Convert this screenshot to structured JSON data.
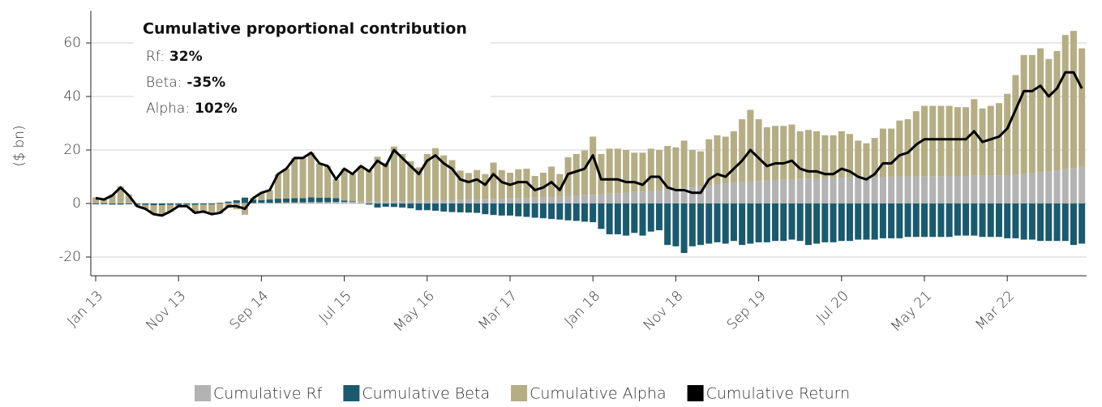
{
  "chart_data": {
    "type": "stacked-bar-line",
    "y_label": "($ bn)",
    "annotation": {
      "title": "Cumulative proportional contribution",
      "items": [
        {
          "label": "Rf:",
          "value": "32%"
        },
        {
          "label": "Beta:",
          "value": "-35%"
        },
        {
          "label": "Alpha:",
          "value": "102%"
        }
      ]
    },
    "categories": [
      "Jan 13",
      null,
      null,
      null,
      null,
      null,
      null,
      null,
      null,
      null,
      "Nov 13",
      null,
      null,
      null,
      null,
      null,
      null,
      null,
      null,
      null,
      "Sep 14",
      null,
      null,
      null,
      null,
      null,
      null,
      null,
      null,
      null,
      "Jul 15",
      null,
      null,
      null,
      null,
      null,
      null,
      null,
      null,
      null,
      "May 16",
      null,
      null,
      null,
      null,
      null,
      null,
      null,
      null,
      null,
      "Mar 17",
      null,
      null,
      null,
      null,
      null,
      null,
      null,
      null,
      null,
      "Jan 18",
      null,
      null,
      null,
      null,
      null,
      null,
      null,
      null,
      null,
      "Nov 18",
      null,
      null,
      null,
      null,
      null,
      null,
      null,
      null,
      null,
      "Sep 19",
      null,
      null,
      null,
      null,
      null,
      null,
      null,
      null,
      null,
      "Jul 20",
      null,
      null,
      null,
      null,
      null,
      null,
      null,
      null,
      null,
      "May 21",
      null,
      null,
      null,
      null,
      null,
      null,
      null,
      null,
      null,
      "Mar 22",
      null,
      null,
      null,
      null,
      null,
      null,
      null,
      null,
      null
    ],
    "series": [
      {
        "name": "Cumulative Rf",
        "color": "#b3b3b3",
        "kind": "bar",
        "values": [
          0.1,
          0.1,
          0.1,
          0.1,
          0.1,
          0.1,
          0.1,
          0.1,
          0.1,
          0.1,
          0.1,
          0.1,
          0.1,
          0.1,
          0.1,
          0.1,
          0.2,
          0.2,
          0.2,
          0.2,
          0.3,
          0.3,
          0.3,
          0.4,
          0.4,
          0.4,
          0.5,
          0.5,
          0.5,
          0.6,
          0.6,
          0.6,
          0.7,
          0.7,
          0.8,
          0.8,
          0.9,
          0.9,
          1.0,
          1.0,
          1.1,
          1.1,
          1.2,
          1.2,
          1.3,
          1.4,
          1.5,
          1.6,
          1.7,
          1.8,
          1.9,
          2.0,
          2.1,
          2.2,
          2.3,
          2.4,
          2.5,
          2.7,
          2.9,
          3.1,
          3.3,
          3.5,
          3.7,
          3.9,
          4.1,
          4.3,
          4.5,
          4.7,
          5.0,
          5.3,
          5.6,
          5.9,
          6.2,
          6.5,
          6.8,
          7.1,
          7.4,
          7.7,
          8.0,
          8.2,
          8.4,
          8.6,
          8.8,
          9.0,
          9.1,
          9.2,
          9.3,
          9.4,
          9.5,
          9.6,
          9.7,
          9.8,
          9.9,
          10.0,
          10.0,
          10.0,
          10.1,
          10.1,
          10.1,
          10.1,
          10.2,
          10.2,
          10.2,
          10.3,
          10.3,
          10.3,
          10.4,
          10.4,
          10.4,
          10.5,
          10.6,
          10.8,
          11.0,
          11.3,
          11.6,
          12.0,
          12.4,
          12.8,
          13.3,
          13.8
        ]
      },
      {
        "name": "Cumulative Beta",
        "color": "#1a5a6e",
        "kind": "bar",
        "values": [
          -0.3,
          -0.3,
          -0.4,
          -0.4,
          -0.3,
          -0.4,
          -0.5,
          -0.6,
          -0.6,
          -0.5,
          -0.5,
          -0.4,
          -0.5,
          -0.4,
          -0.3,
          0.2,
          0.5,
          1.0,
          2.0,
          1.2,
          1.0,
          1.2,
          1.5,
          1.5,
          1.6,
          1.6,
          1.8,
          1.7,
          1.7,
          1.4,
          0.5,
          0.2,
          0.0,
          -0.4,
          -1.5,
          -1.2,
          -1.3,
          -1.5,
          -1.8,
          -2.5,
          -2.5,
          -2.7,
          -3.0,
          -3.2,
          -3.3,
          -3.4,
          -3.5,
          -4.0,
          -4.3,
          -4.5,
          -4.5,
          -4.8,
          -5.0,
          -5.3,
          -5.5,
          -5.8,
          -6.0,
          -6.3,
          -6.5,
          -6.8,
          -7.0,
          -9.5,
          -11.5,
          -11.5,
          -12.0,
          -11.0,
          -12.0,
          -10.5,
          -10.0,
          -15.5,
          -16.0,
          -18.5,
          -16.0,
          -15.5,
          -15.0,
          -14.5,
          -15.0,
          -14.0,
          -15.5,
          -15.0,
          -14.5,
          -14.5,
          -14.0,
          -14.0,
          -13.5,
          -14.0,
          -15.5,
          -15.0,
          -14.5,
          -14.5,
          -14.0,
          -14.0,
          -13.5,
          -13.5,
          -13.5,
          -13.0,
          -13.0,
          -13.0,
          -12.5,
          -12.5,
          -12.5,
          -12.5,
          -12.5,
          -12.5,
          -12.0,
          -12.0,
          -12.0,
          -12.5,
          -12.5,
          -12.5,
          -13.0,
          -13.0,
          -13.5,
          -13.5,
          -14.0,
          -14.0,
          -14.0,
          -14.0,
          -15.5,
          -15.0
        ]
      },
      {
        "name": "Cumulative Alpha",
        "color": "#b5ad84",
        "kind": "bar",
        "values": [
          2.2,
          1.7,
          3.3,
          6.3,
          3.2,
          -0.7,
          -1.6,
          -3.5,
          -4.0,
          -2.6,
          -0.6,
          -0.7,
          -3.1,
          -2.7,
          -3.8,
          -3.8,
          -1.7,
          -2.2,
          -4.2,
          0.6,
          2.7,
          3.5,
          9.2,
          11.1,
          15.0,
          15.0,
          16.7,
          12.8,
          11.8,
          7.0,
          11.9,
          10.2,
          13.3,
          11.7,
          16.7,
          14.4,
          20.4,
          17.6,
          14.8,
          12.5,
          17.4,
          19.6,
          16.8,
          15.0,
          11.0,
          10.0,
          11.0,
          9.4,
          13.6,
          10.7,
          9.6,
          10.8,
          10.9,
          8.1,
          9.2,
          11.4,
          8.5,
          14.6,
          15.6,
          16.7,
          21.7,
          15.0,
          16.8,
          16.6,
          15.9,
          14.7,
          14.5,
          15.8,
          15.0,
          16.2,
          15.4,
          17.6,
          13.8,
          13.0,
          17.2,
          18.4,
          17.6,
          19.3,
          23.5,
          26.8,
          23.1,
          19.9,
          20.2,
          20.0,
          20.4,
          17.8,
          18.2,
          17.6,
          16.0,
          15.9,
          17.3,
          16.2,
          13.6,
          12.5,
          14.5,
          18.0,
          17.9,
          20.9,
          21.4,
          24.4,
          26.3,
          26.3,
          26.3,
          26.2,
          25.7,
          25.7,
          28.6,
          25.1,
          26.1,
          27.0,
          30.4,
          37.2,
          44.5,
          44.2,
          46.4,
          42.0,
          44.6,
          50.2,
          51.2,
          44.2
        ]
      },
      {
        "name": "Cumulative Return",
        "color": "#000000",
        "kind": "line",
        "values": [
          2,
          1.5,
          3,
          6,
          3,
          -1,
          -2,
          -4,
          -4.5,
          -3,
          -1,
          -1,
          -3.5,
          -3,
          -4,
          -3.5,
          -1,
          -1,
          -2,
          2,
          4,
          5,
          11,
          13,
          17,
          17,
          19,
          15,
          14,
          9,
          13,
          11,
          14,
          12,
          16,
          14,
          20,
          17,
          14,
          11,
          16,
          18,
          15,
          13,
          9,
          8,
          9,
          7,
          11,
          8,
          7,
          8,
          8,
          5,
          6,
          8,
          5,
          11,
          12,
          13,
          18,
          9,
          9,
          9,
          8,
          8,
          7,
          10,
          10,
          6,
          5,
          5,
          4,
          4,
          9,
          11,
          10,
          13,
          16,
          20,
          17,
          14,
          15,
          15,
          16,
          13,
          12,
          12,
          11,
          11,
          13,
          12,
          10,
          9,
          11,
          15,
          15,
          18,
          19,
          22,
          24,
          24,
          24,
          24,
          24,
          24,
          27,
          23,
          24,
          25,
          28,
          35,
          42,
          42,
          44,
          40,
          43,
          49,
          49,
          43
        ]
      }
    ],
    "ylim": [
      -27,
      72
    ],
    "yticks": [
      -20,
      0,
      20,
      40,
      60
    ],
    "grid": true,
    "legend": "bottom"
  }
}
